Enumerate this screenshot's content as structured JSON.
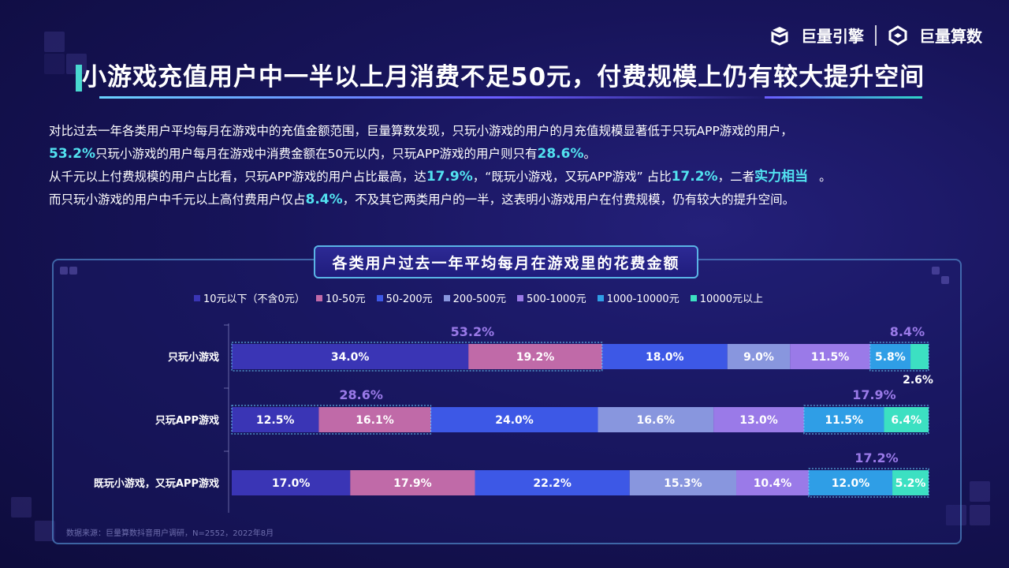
{
  "logos": {
    "left": "巨量引擎",
    "right": "巨量算数"
  },
  "title": "小游戏充值用户中一半以上月消费不足50元，付费规模上仍有较大提升空间",
  "description": {
    "line1": "对比过去一年各类用户平均每月在游戏中的充值金额范围，巨量算数发现，只玩小游戏的用户的月充值规模显著低于只玩APP游戏的用户，",
    "line2_h1": "53.2%",
    "line2_t1": "只玩小游戏的用户每月在游戏中消费金额在50元以内，只玩APP游戏的用户则只有",
    "line2_h2": "28.6%",
    "line2_t2": "。",
    "line3_t1": "从千元以上付费规模的用户占比看，只玩APP游戏的用户占比最高，达",
    "line3_h1": "17.9%",
    "line3_t2": "，“既玩小游戏，又玩APP游戏” 占比",
    "line3_h2": "17.2%",
    "line3_t3": "，二者",
    "line3_h3": "实力相当",
    "line3_t4": "。",
    "line4_t1": "而只玩小游戏的用户中千元以上高付费用户仅占",
    "line4_h1": "8.4%",
    "line4_t2": "，不及其它两类用户的一半，这表明小游戏用户在付费规模，仍有较大的提升空间。"
  },
  "source": "数据来源：巨量算数抖音用户调研，N=2552，2022年8月",
  "chart_data": {
    "type": "bar",
    "orientation": "horizontal-stacked",
    "title": "各类用户过去一年平均每月在游戏里的花费金额",
    "categories": [
      "只玩小游戏",
      "只玩APP游戏",
      "既玩小游戏，又玩APP游戏"
    ],
    "series": [
      {
        "name": "10元以下（不含0元）",
        "color": "#3a35b5",
        "values": [
          34.0,
          12.5,
          17.0
        ]
      },
      {
        "name": "10-50元",
        "color": "#c06aa8",
        "values": [
          19.2,
          16.1,
          17.9
        ]
      },
      {
        "name": "50-200元",
        "color": "#3d58e6",
        "values": [
          18.0,
          24.0,
          22.2
        ]
      },
      {
        "name": "200-500元",
        "color": "#8896de",
        "values": [
          9.0,
          16.6,
          15.3
        ]
      },
      {
        "name": "500-1000元",
        "color": "#9a7ae8",
        "values": [
          11.5,
          13.0,
          10.4
        ]
      },
      {
        "name": "1000-10000元",
        "color": "#2f9ee6",
        "values": [
          5.8,
          11.5,
          12.0
        ]
      },
      {
        "name": "10000元以上",
        "color": "#3ce0c2",
        "values": [
          2.6,
          6.4,
          5.2
        ]
      }
    ],
    "group_annotations": [
      {
        "category": "只玩小游戏",
        "low_total": "53.2%",
        "high_total": "8.4%"
      },
      {
        "category": "只玩APP游戏",
        "low_total": "28.6%",
        "high_total": "17.9%"
      },
      {
        "category": "既玩小游戏，又玩APP游戏",
        "low_total": null,
        "high_total": "17.2%"
      }
    ],
    "xlim": [
      0,
      100
    ],
    "legend_position": "top"
  }
}
